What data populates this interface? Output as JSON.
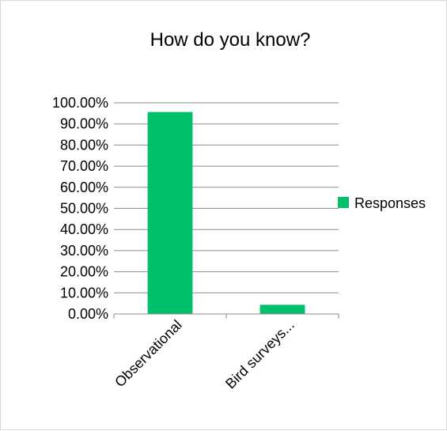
{
  "chart_data": {
    "type": "bar",
    "title": "How do you know?",
    "categories": [
      "Observational",
      "Bird surveys..."
    ],
    "series": [
      {
        "name": "Responses",
        "values": [
          95.65,
          4.35
        ],
        "color": "#00c06b"
      }
    ],
    "yticks": [
      "0.00%",
      "10.00%",
      "20.00%",
      "30.00%",
      "40.00%",
      "50.00%",
      "60.00%",
      "70.00%",
      "80.00%",
      "90.00%",
      "100.00%"
    ],
    "ylim": [
      0,
      100
    ],
    "xlabel": "",
    "ylabel": "",
    "grid": true,
    "legend_position": "right"
  }
}
